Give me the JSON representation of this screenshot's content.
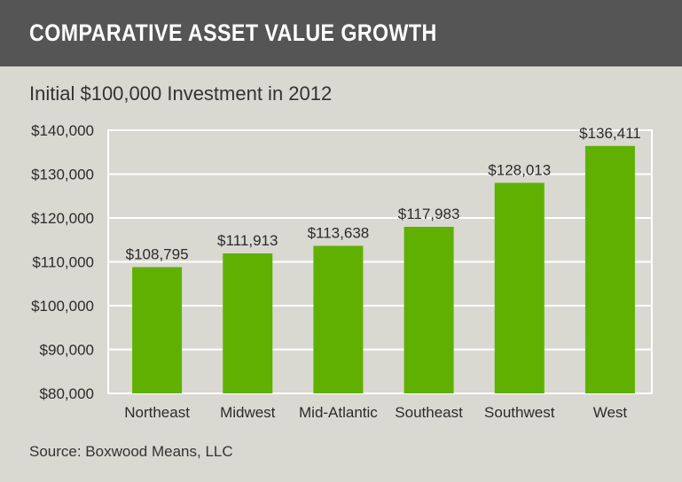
{
  "chart_data": {
    "type": "bar",
    "title": "COMPARATIVE ASSET VALUE GROWTH",
    "subtitle": "Initial $100,000 Investment in 2012",
    "categories": [
      "Northeast",
      "Midwest",
      "Mid-Atlantic",
      "Southeast",
      "Southwest",
      "West"
    ],
    "values": [
      108795,
      111913,
      113638,
      117983,
      128013,
      136411
    ],
    "data_labels": [
      "$108,795",
      "$111,913",
      "$113,638",
      "$117,983",
      "$128,013",
      "$136,411"
    ],
    "ylim": [
      80000,
      140000
    ],
    "yticks": [
      80000,
      90000,
      100000,
      110000,
      120000,
      130000,
      140000
    ],
    "ytick_labels": [
      "$80,000",
      "$90,000",
      "$100,000",
      "$110,000",
      "$120,000",
      "$130,000",
      "$140,000"
    ],
    "grid": true,
    "bar_color": "#5fb000",
    "source": "Source: Boxwood Means, LLC"
  }
}
